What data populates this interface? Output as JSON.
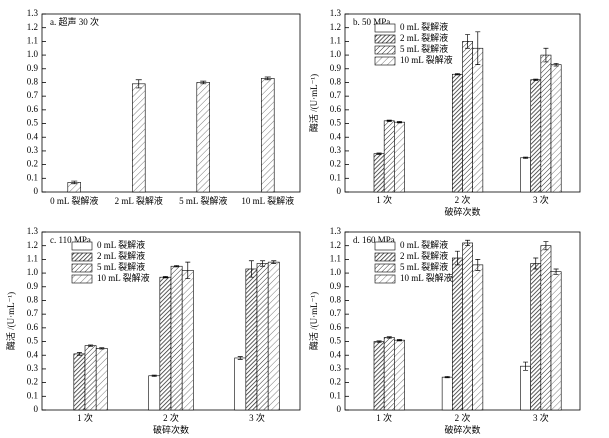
{
  "chart_data": [
    {
      "type": "bar",
      "title": "a. 超声 30 次",
      "categories": [
        "0 mL 裂解液",
        "2 mL 裂解液",
        "5 mL 裂解液",
        "10 mL 裂解液"
      ],
      "values": [
        0.07,
        0.79,
        0.8,
        0.83
      ],
      "errors": [
        0.01,
        0.03,
        0.01,
        0.01
      ],
      "ylim": [
        0,
        1.3
      ],
      "yticks": [
        0,
        0.1,
        0.2,
        0.3,
        0.4,
        0.5,
        0.6,
        0.7,
        0.8,
        0.9,
        {
          "value": 1,
          "label": "1.0"
        },
        1.1,
        1.2,
        1.3
      ]
    },
    {
      "type": "grouped-bar",
      "title": "b. 50 MPa",
      "ylabel": "酶活 /(U·mL⁻¹)",
      "xlabel": "破碎次数",
      "categories": [
        "1 次",
        "2 次",
        "3 次"
      ],
      "series": [
        {
          "name": "0 mL 裂解液",
          "hatch": "none",
          "values": [
            0,
            0,
            0.25
          ],
          "errors": [
            0,
            0,
            0.005
          ]
        },
        {
          "name": "2 mL 裂解液",
          "hatch": "dense",
          "values": [
            0.28,
            0.86,
            0.82
          ],
          "errors": [
            0.005,
            0.005,
            0.005
          ]
        },
        {
          "name": "5 mL 裂解液",
          "hatch": "medium",
          "values": [
            0.52,
            1.1,
            1.0
          ],
          "errors": [
            0.005,
            0.05,
            0.05
          ]
        },
        {
          "name": "10 mL 裂解液",
          "hatch": "sparse",
          "values": [
            0.51,
            1.05,
            0.93
          ],
          "errors": [
            0.005,
            0.12,
            0.01
          ]
        }
      ],
      "ylim": [
        0,
        1.3
      ],
      "yticks": [
        0,
        0.1,
        0.2,
        0.3,
        0.4,
        0.5,
        0.6,
        0.7,
        0.8,
        0.9,
        {
          "value": 1,
          "label": "1.0"
        },
        1.1,
        1.2,
        1.3
      ],
      "legend": "upper left"
    },
    {
      "type": "grouped-bar",
      "title": "c. 110 MPa",
      "ylabel": "酶活 /(U·mL⁻¹)",
      "xlabel": "破碎次数",
      "categories": [
        "1 次",
        "2 次",
        "3 次"
      ],
      "series": [
        {
          "name": "0 mL 裂解液",
          "hatch": "none",
          "values": [
            0,
            0.25,
            0.38
          ],
          "errors": [
            0,
            0.005,
            0.01
          ]
        },
        {
          "name": "2 mL 裂解液",
          "hatch": "dense",
          "values": [
            0.41,
            0.97,
            1.03
          ],
          "errors": [
            0.01,
            0.005,
            0.06
          ]
        },
        {
          "name": "5 mL 裂解液",
          "hatch": "medium",
          "values": [
            0.47,
            1.05,
            1.07
          ],
          "errors": [
            0.005,
            0.005,
            0.02
          ]
        },
        {
          "name": "10 mL 裂解液",
          "hatch": "sparse",
          "values": [
            0.45,
            1.02,
            1.08
          ],
          "errors": [
            0.005,
            0.06,
            0.01
          ]
        }
      ],
      "ylim": [
        0,
        1.3
      ],
      "yticks": [
        0,
        0.1,
        0.2,
        0.3,
        0.4,
        0.5,
        0.6,
        0.7,
        0.8,
        0.9,
        {
          "value": 1,
          "label": "1.0"
        },
        1.1,
        1.2,
        1.3
      ],
      "legend": "upper left"
    },
    {
      "type": "grouped-bar",
      "title": "d. 160 MPa",
      "ylabel": "酶活 /(U·mL⁻¹)",
      "xlabel": "破碎次数",
      "categories": [
        "1 次",
        "2 次",
        "3 次"
      ],
      "series": [
        {
          "name": "0 mL 裂解液",
          "hatch": "none",
          "values": [
            0,
            0.24,
            0.32
          ],
          "errors": [
            0,
            0.005,
            0.03
          ]
        },
        {
          "name": "2 mL 裂解液",
          "hatch": "dense",
          "values": [
            0.5,
            1.11,
            1.07
          ],
          "errors": [
            0.005,
            0.05,
            0.04
          ]
        },
        {
          "name": "5 mL 裂解液",
          "hatch": "medium",
          "values": [
            0.53,
            1.22,
            1.2
          ],
          "errors": [
            0.005,
            0.02,
            0.03
          ]
        },
        {
          "name": "10 mL 裂解液",
          "hatch": "sparse",
          "values": [
            0.51,
            1.06,
            1.01
          ],
          "errors": [
            0.005,
            0.04,
            0.02
          ]
        }
      ],
      "ylim": [
        0,
        1.3
      ],
      "yticks": [
        0,
        0.1,
        0.2,
        0.3,
        0.4,
        0.5,
        0.6,
        0.7,
        0.8,
        0.9,
        {
          "value": 1,
          "label": "1.0"
        },
        1.1,
        1.2,
        1.3
      ],
      "legend": "upper left"
    }
  ]
}
